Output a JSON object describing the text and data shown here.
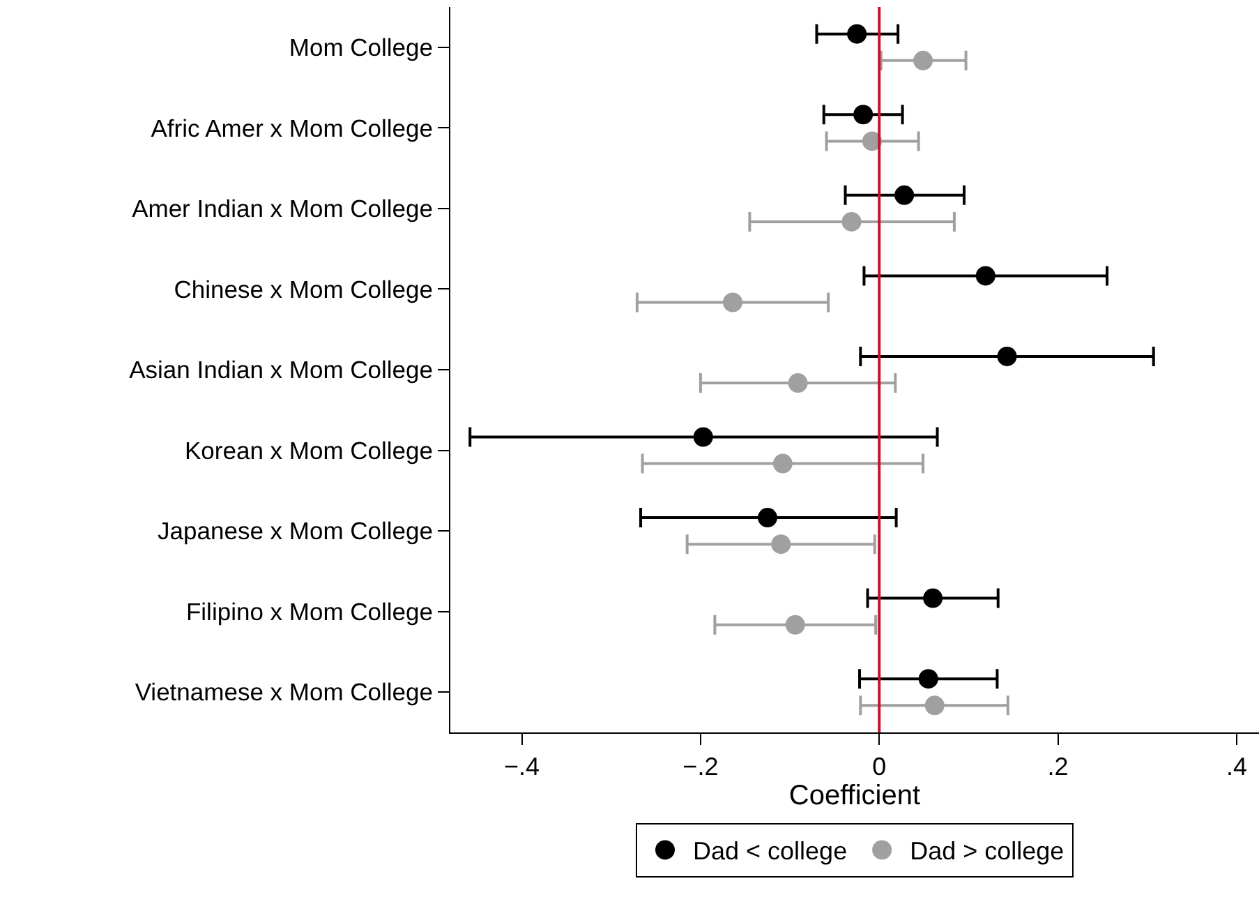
{
  "chart_data": {
    "type": "scatter",
    "orientation": "horizontal",
    "xlabel": "Coefficient",
    "categories": [
      "Mom College",
      "Afric Amer x Mom College",
      "Amer Indian x Mom College",
      "Chinese x Mom College",
      "Asian Indian x Mom College",
      "Korean x Mom College",
      "Japanese x Mom College",
      "Filipino x Mom College",
      "Vietnamese x Mom College"
    ],
    "series": [
      {
        "name": "Dad < college",
        "color": "#000000",
        "values": [
          -0.025,
          -0.018,
          0.028,
          0.119,
          0.143,
          -0.197,
          -0.125,
          0.06,
          0.055
        ],
        "errors": [
          [
            -0.07,
            0.021
          ],
          [
            -0.062,
            0.026
          ],
          [
            -0.038,
            0.095
          ],
          [
            -0.017,
            0.255
          ],
          [
            -0.021,
            0.307
          ],
          [
            -0.458,
            0.065
          ],
          [
            -0.267,
            0.019
          ],
          [
            -0.013,
            0.133
          ],
          [
            -0.022,
            0.132
          ]
        ]
      },
      {
        "name": "Dad > college",
        "color": "#a0a0a0",
        "values": [
          0.049,
          -0.008,
          -0.031,
          -0.164,
          -0.091,
          -0.108,
          -0.11,
          -0.094,
          0.062
        ],
        "errors": [
          [
            0.002,
            0.097
          ],
          [
            -0.059,
            0.044
          ],
          [
            -0.145,
            0.084
          ],
          [
            -0.271,
            -0.057
          ],
          [
            -0.2,
            0.018
          ],
          [
            -0.265,
            0.049
          ],
          [
            -0.215,
            -0.005
          ],
          [
            -0.184,
            -0.004
          ],
          [
            -0.021,
            0.144
          ]
        ]
      }
    ],
    "xlim": [
      -0.48,
      0.425
    ],
    "xticks": [
      {
        "value": -0.4,
        "label": "−.4"
      },
      {
        "value": -0.2,
        "label": "−.2"
      },
      {
        "value": 0,
        "label": "0"
      },
      {
        "value": 0.2,
        "label": ".2"
      },
      {
        "value": 0.4,
        "label": ".4"
      }
    ],
    "ref_lines": [
      {
        "axis": "x",
        "value": 0,
        "color": "#c8102e"
      }
    ],
    "marker": "circle",
    "legend": "bottom"
  }
}
